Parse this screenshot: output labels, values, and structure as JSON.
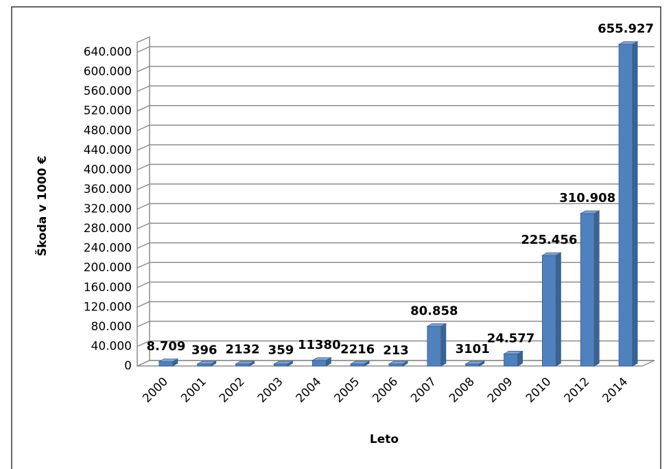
{
  "chart_data": {
    "type": "bar",
    "categories": [
      "2000",
      "2001",
      "2002",
      "2003",
      "2004",
      "2005",
      "2006",
      "2007",
      "2008",
      "2009",
      "2010",
      "2012",
      "2014"
    ],
    "values": [
      8709,
      396,
      2132,
      359,
      11380,
      2216,
      213,
      80858,
      3101,
      24577,
      225456,
      310908,
      655927
    ],
    "value_labels": [
      "8.709",
      "396",
      "2132",
      "359",
      "11380",
      "2216",
      "213",
      "80.858",
      "3101",
      "24.577",
      "225.456",
      "310.908",
      "655.927"
    ],
    "color": "#4f81bd",
    "ylim": [
      0,
      660000
    ],
    "yticks": [
      0,
      {
        "value": 40000,
        "label": "40.000"
      },
      {
        "value": 80000,
        "label": "80.000"
      },
      {
        "value": 120000,
        "label": "120.000"
      },
      {
        "value": 160000,
        "label": "160.000"
      },
      {
        "value": 200000,
        "label": "200.000"
      },
      {
        "value": 240000,
        "label": "240.000"
      },
      {
        "value": 280000,
        "label": "280.000"
      },
      {
        "value": 320000,
        "label": "320.000"
      },
      {
        "value": 360000,
        "label": "360.000"
      },
      {
        "value": 400000,
        "label": "400.000"
      },
      {
        "value": 440000,
        "label": "440.000"
      },
      {
        "value": 480000,
        "label": "480.000"
      },
      {
        "value": 520000,
        "label": "520.000"
      },
      {
        "value": 560000,
        "label": "560.000"
      },
      {
        "value": 600000,
        "label": "600.000"
      },
      {
        "value": 640000,
        "label": "640.000"
      }
    ],
    "grid": true,
    "y_label": "Škoda v 1000  €",
    "x_label": "Leto"
  }
}
